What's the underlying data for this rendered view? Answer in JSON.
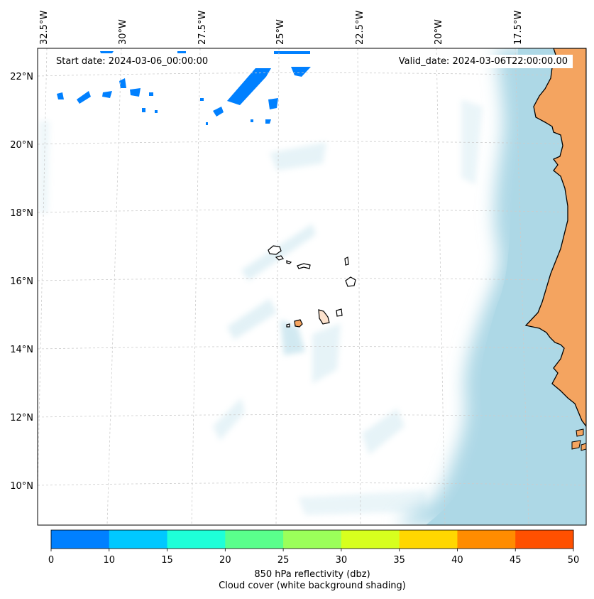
{
  "map": {
    "start_label": "Start date: 2024-03-06_00:00:00",
    "valid_label": "Valid_date: 2024-03-06T22:00:00.00",
    "longitude_labels": [
      "32.5°W",
      "30°W",
      "27.5°W",
      "25°W",
      "22.5°W",
      "20°W",
      "17.5°W"
    ],
    "latitude_labels": [
      "22°N",
      "20°N",
      "18°N",
      "16°N",
      "14°N",
      "12°N",
      "10°N"
    ],
    "colors": {
      "land": "#f4a460",
      "coastline": "#000000",
      "cloud_cover": "#add8e6",
      "ocean": "#ffffff",
      "gridline": "#cccccc"
    },
    "layers": [
      "cloud-cover-shading",
      "850-hPa-reflectivity",
      "coastlines",
      "lat-lon-gridlines"
    ]
  },
  "colorbar": {
    "ticks": [
      "0",
      "10",
      "15",
      "20",
      "25",
      "30",
      "35",
      "40",
      "45",
      "50"
    ],
    "colors": [
      "#0080ff",
      "#00c8ff",
      "#1effd8",
      "#5aff8c",
      "#9bff5a",
      "#d7ff1e",
      "#ffd700",
      "#ff8c00",
      "#ff5000"
    ],
    "label_line1": "850 hPa reflectivity (dbz)",
    "label_line2": "Cloud cover (white background shading)"
  }
}
